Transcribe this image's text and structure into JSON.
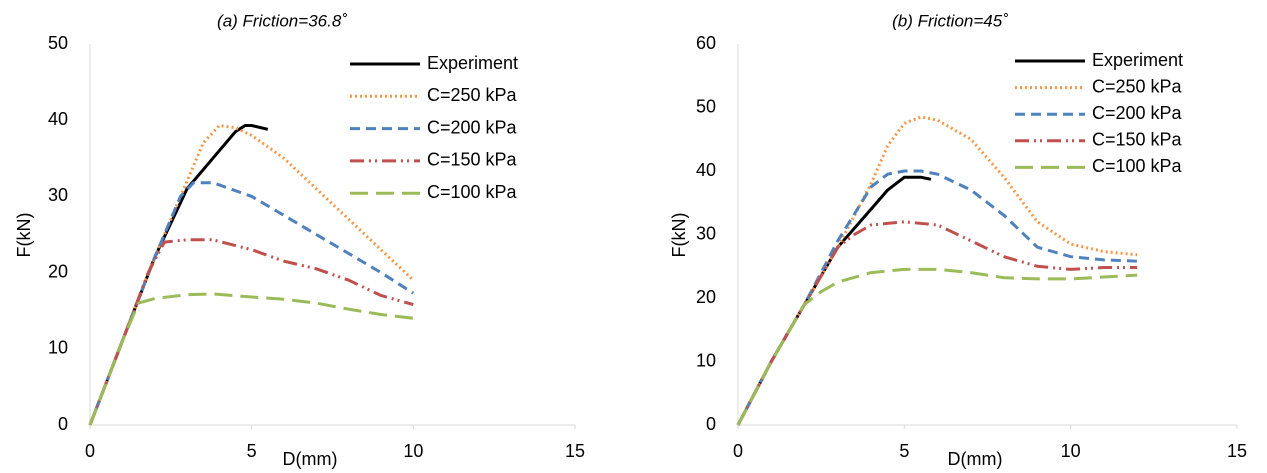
{
  "chart_data": [
    {
      "type": "line",
      "title": "(a) Friction=36.8˚",
      "x_label": "D(mm)",
      "y_label": "F(kN)",
      "xlim": [
        0,
        15
      ],
      "xticks": [
        0,
        5,
        10,
        15
      ],
      "ylim": [
        0,
        50
      ],
      "yticks": [
        0,
        10,
        20,
        30,
        40,
        50
      ],
      "grid": false,
      "legend": "top-right",
      "series": [
        {
          "name": "Experiment",
          "color": "#000000",
          "style": "solid",
          "x": [
            0,
            1,
            2,
            3,
            4,
            4.5,
            4.8,
            5,
            5.5
          ],
          "values": [
            0,
            11,
            22,
            31,
            36,
            38.5,
            39.3,
            39.3,
            38.8
          ]
        },
        {
          "name": "C=250 kPa",
          "color": "#f79646",
          "style": "dotted",
          "x": [
            0,
            1,
            2,
            3,
            3.5,
            4,
            4.5,
            5,
            6,
            7,
            8,
            9,
            10
          ],
          "values": [
            0,
            11,
            22,
            32,
            37,
            39.3,
            39,
            38,
            35,
            31,
            27,
            23,
            19
          ]
        },
        {
          "name": "C=200 kPa",
          "color": "#4f81bd",
          "style": "dashed",
          "x": [
            0,
            1,
            2,
            2.8,
            3.2,
            3.8,
            5,
            6,
            7,
            8,
            9,
            10
          ],
          "values": [
            0,
            11,
            22,
            30,
            31.8,
            31.8,
            30,
            27.5,
            25,
            22.5,
            20,
            17.3
          ]
        },
        {
          "name": "C=150 kPa",
          "color": "#c0504d",
          "style": "dash-dot-dot",
          "x": [
            0,
            1,
            1.8,
            2.3,
            3,
            3.8,
            5,
            6,
            7,
            8,
            9,
            10
          ],
          "values": [
            0,
            11,
            20,
            24,
            24.3,
            24.3,
            23,
            21.5,
            20.5,
            19,
            17,
            15.8
          ]
        },
        {
          "name": "C=100 kPa",
          "color": "#9bbb59",
          "style": "long-dash",
          "x": [
            0,
            1,
            1.5,
            2,
            3,
            3.8,
            5,
            6,
            7,
            8,
            9,
            10
          ],
          "values": [
            0,
            11,
            16,
            16.6,
            17.1,
            17.2,
            16.8,
            16.5,
            16,
            15.2,
            14.5,
            14
          ]
        }
      ]
    },
    {
      "type": "line",
      "title": "(b) Friction=45˚",
      "x_label": "D(mm)",
      "y_label": "F(kN)",
      "xlim": [
        0,
        15
      ],
      "xticks": [
        0,
        5,
        10,
        15
      ],
      "ylim": [
        0,
        60
      ],
      "yticks": [
        0,
        10,
        20,
        30,
        40,
        50,
        60
      ],
      "grid": false,
      "legend": "top-right",
      "series": [
        {
          "name": "Experiment",
          "color": "#000000",
          "style": "solid",
          "x": [
            0,
            1,
            2,
            3,
            4,
            4.5,
            5,
            5.5,
            5.8
          ],
          "values": [
            0,
            10,
            19,
            28,
            34,
            37,
            39,
            39,
            38.7
          ]
        },
        {
          "name": "C=250 kPa",
          "color": "#f79646",
          "style": "dotted",
          "x": [
            0,
            1,
            2,
            3,
            4,
            4.5,
            5,
            5.5,
            6,
            7,
            8,
            9,
            10,
            11,
            12
          ],
          "values": [
            0,
            10,
            19,
            28,
            38,
            44,
            47.5,
            48.5,
            48,
            45,
            39,
            32,
            28.5,
            27.3,
            26.8
          ]
        },
        {
          "name": "C=200 kPa",
          "color": "#4f81bd",
          "style": "dashed",
          "x": [
            0,
            1,
            2,
            3,
            4,
            4.5,
            5,
            5.5,
            6,
            7,
            8,
            9,
            10,
            11,
            12
          ],
          "values": [
            0,
            10,
            19,
            29,
            37.5,
            39.5,
            40,
            40,
            39.5,
            37,
            33,
            28,
            26.5,
            26,
            25.8
          ]
        },
        {
          "name": "C=150 kPa",
          "color": "#c0504d",
          "style": "dash-dot-dot",
          "x": [
            0,
            1,
            2,
            3,
            3.5,
            4,
            5,
            6,
            7,
            8,
            9,
            10,
            11,
            12
          ],
          "values": [
            0,
            10,
            19,
            28,
            30,
            31.5,
            32,
            31.5,
            29,
            26.5,
            25,
            24.5,
            24.8,
            24.8
          ]
        },
        {
          "name": "C=100 kPa",
          "color": "#9bbb59",
          "style": "long-dash",
          "x": [
            0,
            1,
            2,
            2.5,
            3,
            4,
            5,
            6,
            7,
            8,
            9,
            10,
            11,
            12
          ],
          "values": [
            0,
            10,
            19,
            21,
            22.5,
            24,
            24.5,
            24.5,
            24,
            23.2,
            23,
            23,
            23.3,
            23.6
          ]
        }
      ]
    }
  ]
}
